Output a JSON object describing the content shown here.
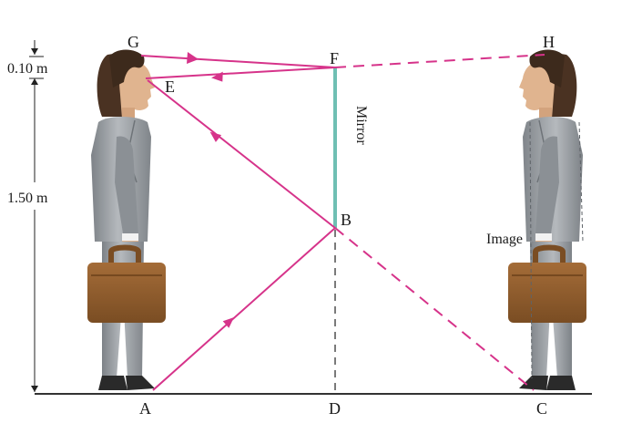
{
  "points": {
    "A": "A",
    "B": "B",
    "C": "C",
    "D": "D",
    "E": "E",
    "F": "F",
    "G": "G",
    "H": "H"
  },
  "dimensions": {
    "top_gap": "0.10 m",
    "eye_height": "1.50 m"
  },
  "labels": {
    "mirror": "Mirror",
    "image": "Image"
  },
  "colors": {
    "ray": "#d6338a",
    "mirror": "#6fbfb3",
    "ground": "#333333",
    "suit": "#9a9ea3",
    "hair": "#4a3222",
    "skin": "#e0b48f",
    "briefcase": "#9a6433"
  }
}
